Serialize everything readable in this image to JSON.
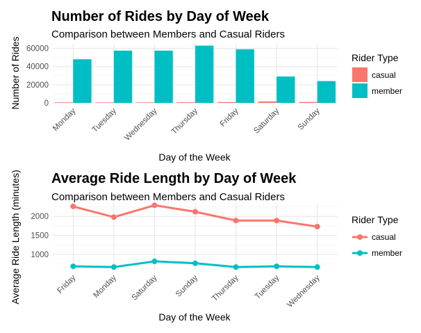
{
  "chart_data": [
    {
      "type": "bar",
      "title": "Number of Rides by Day of Week",
      "subtitle": "Comparison between Members and Casual Riders",
      "xlabel": "Day of the Week",
      "ylabel": "Number of Rides",
      "ylim": [
        0,
        65000
      ],
      "yticks": [
        0,
        20000,
        40000,
        60000
      ],
      "categories": [
        "Monday",
        "Tuesday",
        "Wednesday",
        "Thursday",
        "Friday",
        "Saturday",
        "Sunday"
      ],
      "series": [
        {
          "name": "casual",
          "color": "#F8766D",
          "values": [
            600,
            500,
            550,
            700,
            900,
            1600,
            1000
          ]
        },
        {
          "name": "member",
          "color": "#00BFC4",
          "values": [
            48000,
            57500,
            57500,
            63000,
            59000,
            29000,
            24000
          ]
        }
      ],
      "legend": {
        "title": "Rider Type",
        "position": "right"
      },
      "grid": true
    },
    {
      "type": "line",
      "title": "Average Ride Length by Day of Week",
      "subtitle": "Comparison between Members and Casual Riders",
      "xlabel": "Day of the Week",
      "ylabel": "Average Ride Length (minutes)",
      "ylim": [
        600,
        2350
      ],
      "yticks": [
        1000,
        1500,
        2000
      ],
      "categories": [
        "Friday",
        "Monday",
        "Saturday",
        "Sunday",
        "Thursday",
        "Tuesday",
        "Wednesday"
      ],
      "series": [
        {
          "name": "casual",
          "color": "#F8766D",
          "values": [
            2260,
            1980,
            2290,
            2120,
            1890,
            1890,
            1730
          ]
        },
        {
          "name": "member",
          "color": "#00BFC4",
          "values": [
            690,
            670,
            820,
            770,
            670,
            690,
            670
          ]
        }
      ],
      "legend": {
        "title": "Rider Type",
        "position": "right"
      },
      "grid": true
    }
  ]
}
